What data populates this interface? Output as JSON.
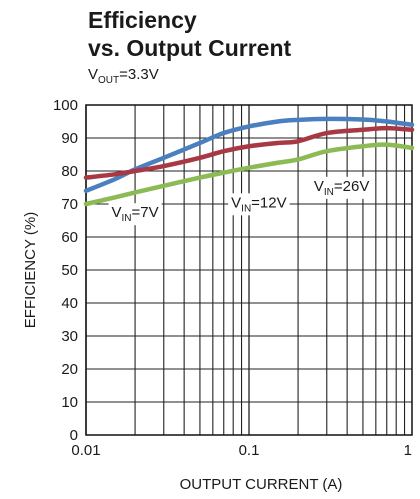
{
  "chart_data": {
    "type": "line",
    "title_line1": "Efficiency",
    "title_line2": "vs. Output Current",
    "subtitle": {
      "main": "V",
      "sub": "OUT",
      "rest": "=3.3V"
    },
    "xlabel": "OUTPUT CURRENT (A)",
    "ylabel": "EFFICIENCY (%)",
    "x_scale": "log",
    "xlim": [
      0.01,
      1
    ],
    "ylim": [
      0,
      100
    ],
    "x_ticks": [
      {
        "value": 0.01,
        "label": "0.01"
      },
      {
        "value": 0.1,
        "label": "0.1"
      },
      {
        "value": 1,
        "label": "1"
      }
    ],
    "y_ticks": [
      {
        "value": 0,
        "label": "0"
      },
      {
        "value": 10,
        "label": "10"
      },
      {
        "value": 20,
        "label": "20"
      },
      {
        "value": 30,
        "label": "30"
      },
      {
        "value": 40,
        "label": "40"
      },
      {
        "value": 50,
        "label": "50"
      },
      {
        "value": 60,
        "label": "60"
      },
      {
        "value": 70,
        "label": "70"
      },
      {
        "value": 80,
        "label": "80"
      },
      {
        "value": 90,
        "label": "90"
      },
      {
        "value": 100,
        "label": "100"
      }
    ],
    "grid": true,
    "series": [
      {
        "name": "VIN=7V",
        "color": "#4a7fc0",
        "x": [
          0.01,
          0.015,
          0.02,
          0.03,
          0.05,
          0.07,
          0.1,
          0.15,
          0.2,
          0.3,
          0.5,
          0.7,
          1
        ],
        "y": [
          74,
          77.5,
          80.5,
          84,
          88.5,
          91.5,
          93.5,
          95,
          95.5,
          95.8,
          95.6,
          95,
          94
        ]
      },
      {
        "name": "VIN=12V",
        "color": "#a83843",
        "x": [
          0.01,
          0.015,
          0.02,
          0.03,
          0.05,
          0.07,
          0.1,
          0.15,
          0.2,
          0.3,
          0.5,
          0.7,
          1
        ],
        "y": [
          78,
          79,
          80,
          81.5,
          84,
          86,
          87.5,
          88.5,
          89,
          91.5,
          92.5,
          93,
          92.5
        ]
      },
      {
        "name": "VIN=26V",
        "color": "#8cbb56",
        "x": [
          0.01,
          0.015,
          0.02,
          0.03,
          0.05,
          0.07,
          0.1,
          0.15,
          0.2,
          0.3,
          0.5,
          0.7,
          1
        ],
        "y": [
          70,
          72,
          73.5,
          75.5,
          78,
          79.5,
          81,
          82.5,
          83.5,
          86,
          87.5,
          88,
          87
        ]
      }
    ],
    "annotations": [
      {
        "main": "V",
        "sub": "IN",
        "rest": "=7V",
        "x": 0.02,
        "y": 66
      },
      {
        "main": "V",
        "sub": "IN",
        "rest": "=12V",
        "x": 0.115,
        "y": 69
      },
      {
        "main": "V",
        "sub": "IN",
        "rest": "=26V",
        "x": 0.37,
        "y": 74
      }
    ]
  }
}
